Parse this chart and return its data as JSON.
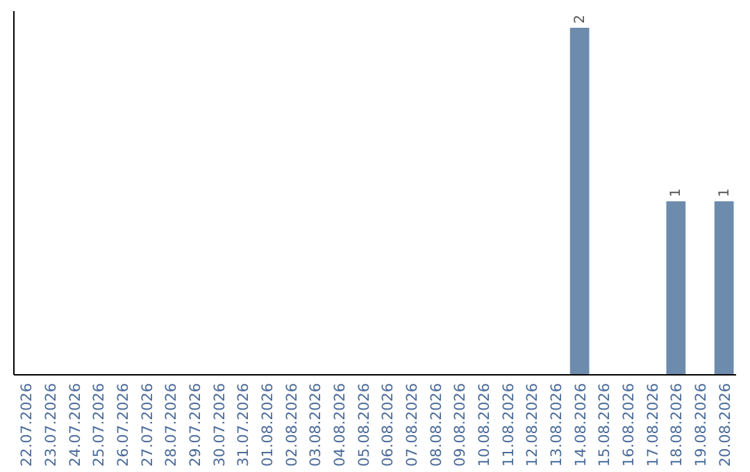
{
  "chart_data": {
    "type": "bar",
    "categories": [
      "22.07.2026",
      "23.07.2026",
      "24.07.2026",
      "25.07.2026",
      "26.07.2026",
      "27.07.2026",
      "28.07.2026",
      "29.07.2026",
      "30.07.2026",
      "31.07.2026",
      "01.08.2026",
      "02.08.2026",
      "03.08.2026",
      "04.08.2026",
      "05.08.2026",
      "06.08.2026",
      "07.08.2026",
      "08.08.2026",
      "09.08.2026",
      "10.08.2026",
      "11.08.2026",
      "12.08.2026",
      "13.08.2026",
      "14.08.2026",
      "15.08.2026",
      "16.08.2026",
      "17.08.2026",
      "18.08.2026",
      "19.08.2026",
      "20.08.2026"
    ],
    "values": [
      null,
      null,
      null,
      null,
      null,
      null,
      null,
      null,
      null,
      null,
      null,
      null,
      null,
      null,
      null,
      null,
      null,
      null,
      null,
      null,
      null,
      null,
      null,
      2,
      null,
      null,
      null,
      1,
      null,
      1
    ],
    "data_labels": true,
    "color": "#6d8cad",
    "tick_labels": "x"
  }
}
